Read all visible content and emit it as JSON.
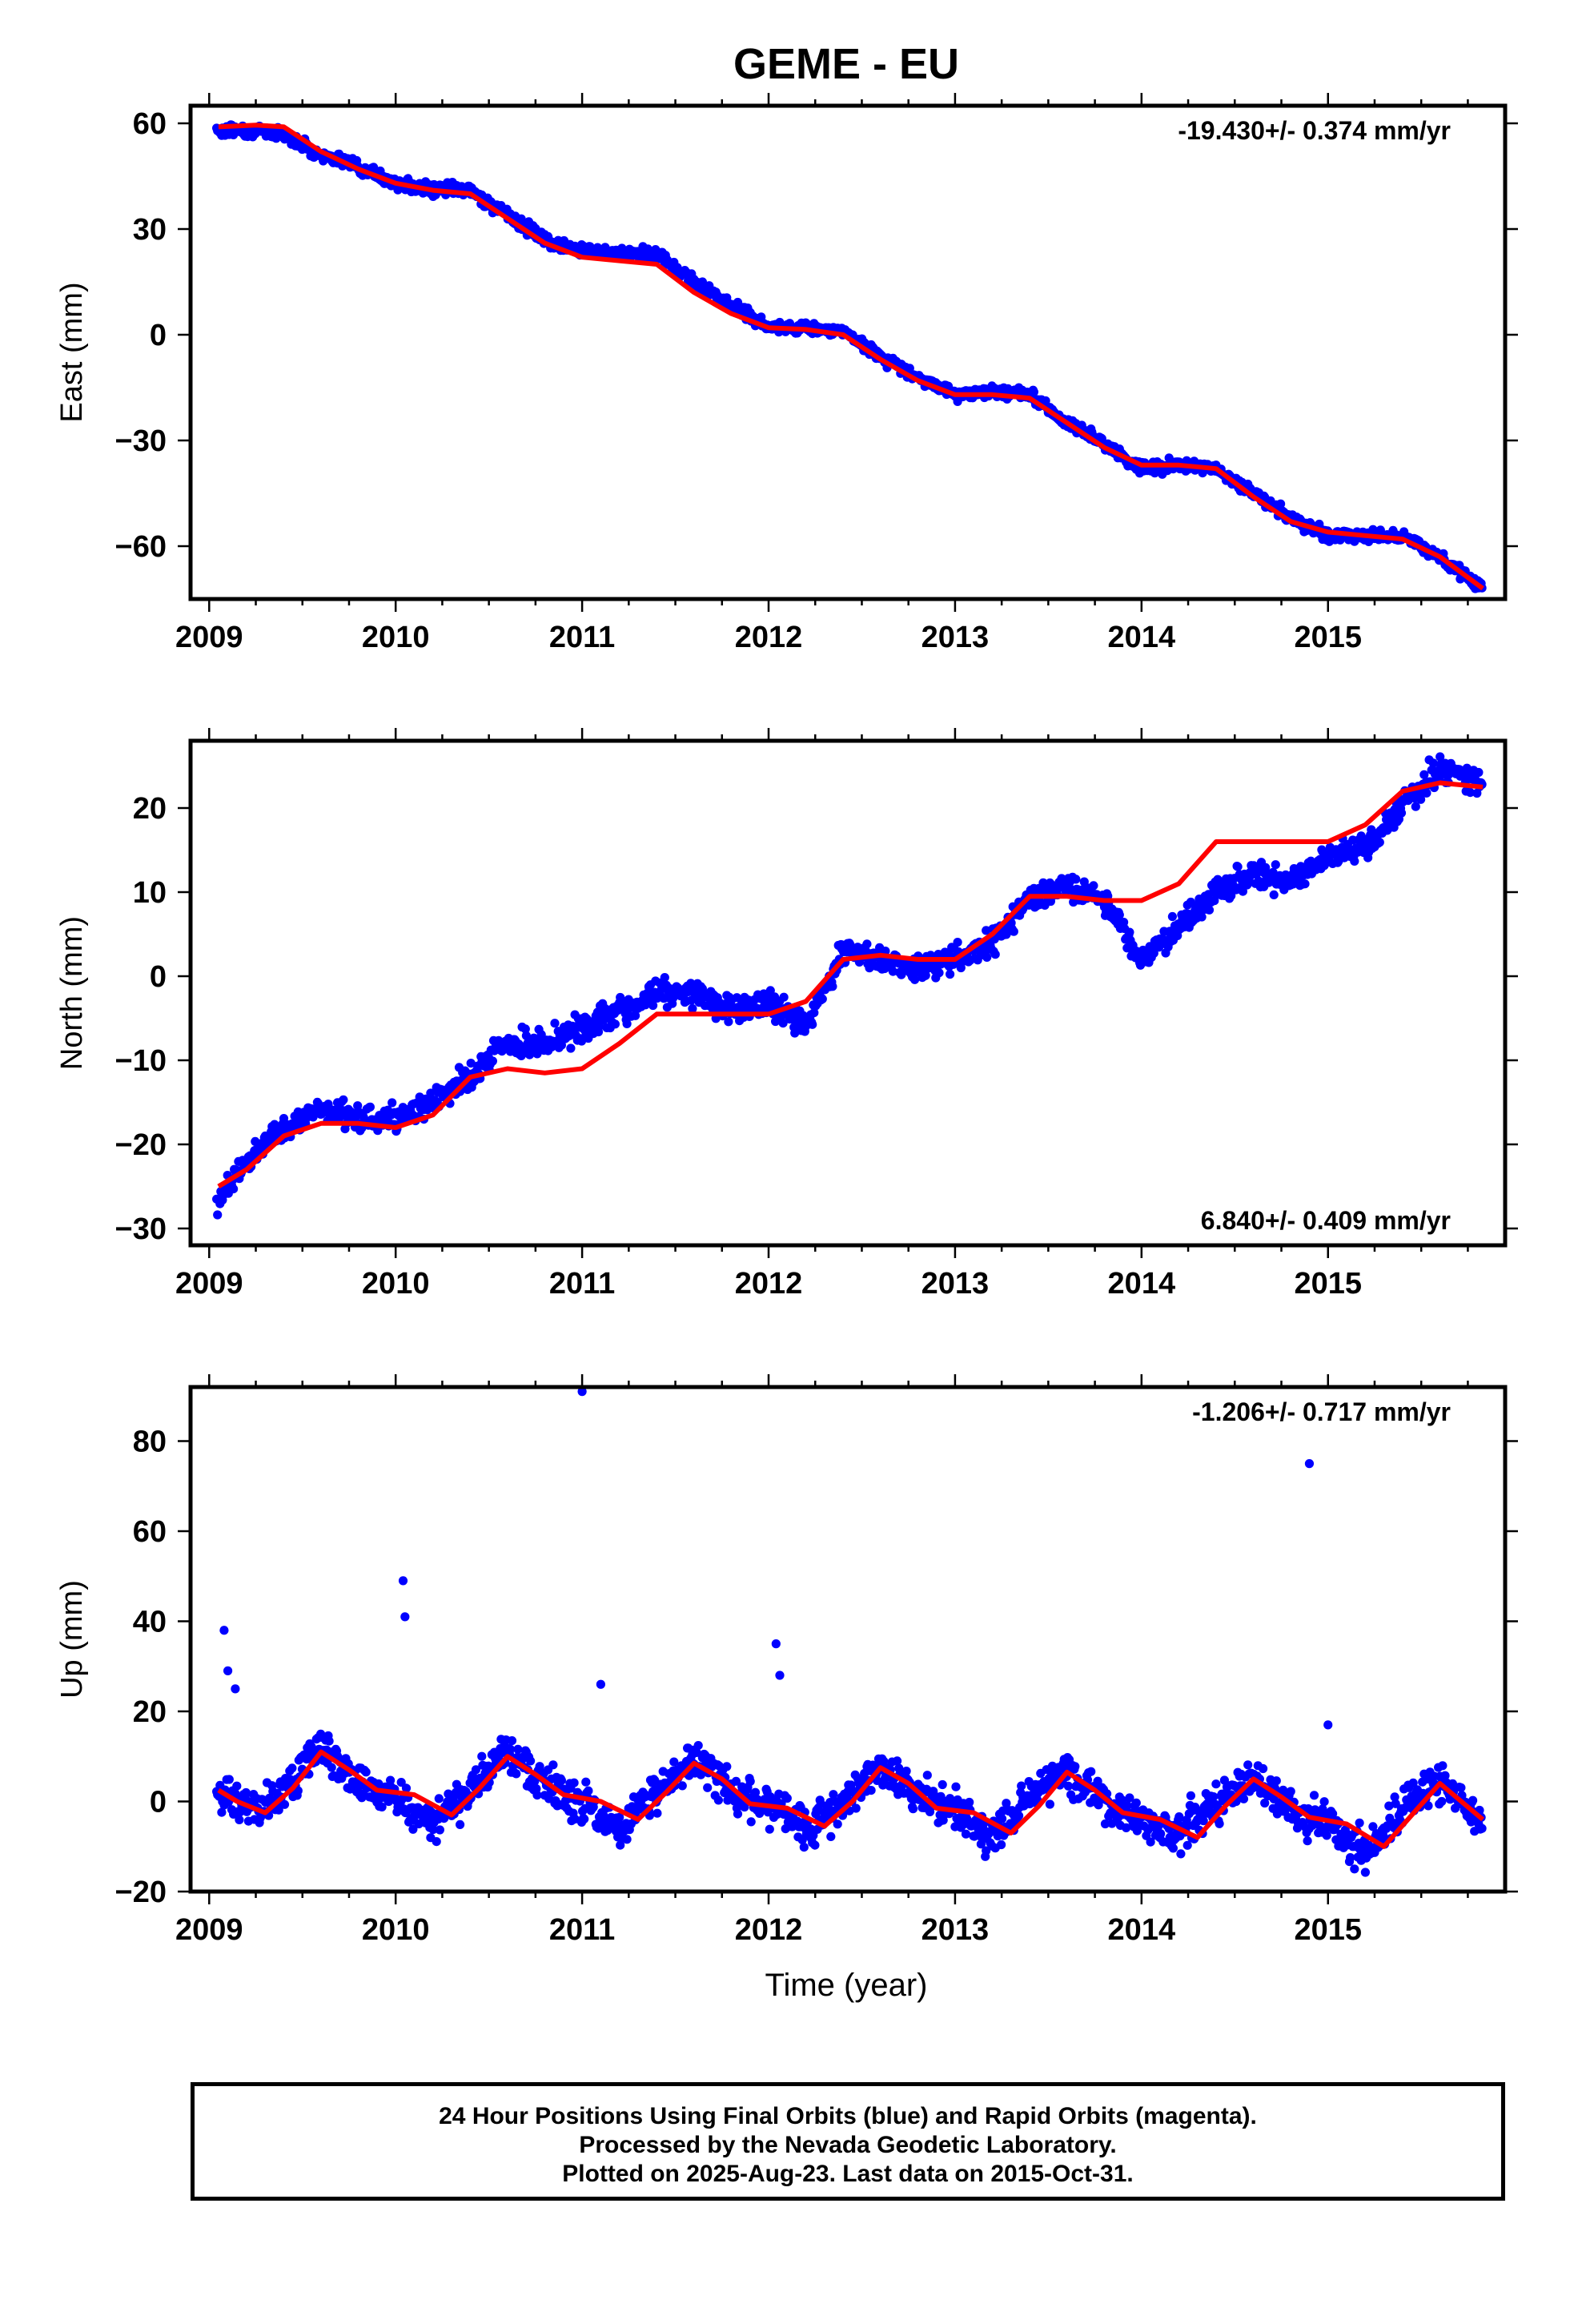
{
  "title": "GEME - EU",
  "colors": {
    "final": "#0000ff",
    "model": "#ff0000",
    "frame": "#000000"
  },
  "x_ticks": [
    "2009",
    "2010",
    "2011",
    "2012",
    "2013",
    "2014",
    "2015"
  ],
  "xlabel": "Time (year)",
  "footer": {
    "line1": "24 Hour Positions Using Final Orbits (blue) and Rapid Orbits (magenta).",
    "line2": "Processed by the Nevada Geodetic Laboratory.",
    "line3": "Plotted on 2025-Aug-23. Last data on 2015-Oct-31."
  },
  "chart_data": [
    {
      "type": "scatter",
      "ylabel": "East (mm)",
      "rate_text": "-19.430+/- 0.374 mm/yr",
      "rate_position": "top-right",
      "xlim": [
        2008.9,
        2015.95
      ],
      "ylim": [
        -75,
        65
      ],
      "yticks": [
        60,
        30,
        0,
        -30,
        -60
      ],
      "ytick_labels": [
        "60",
        "30",
        "0",
        "−30",
        "−60"
      ],
      "grid": false,
      "series": [
        {
          "name": "Final Orbits",
          "x": [
            2009.0,
            2009.25,
            2009.4,
            2009.6,
            2009.8,
            2010.0,
            2010.2,
            2010.4,
            2010.6,
            2010.8,
            2011.0,
            2011.2,
            2011.4,
            2011.6,
            2011.8,
            2012.0,
            2012.2,
            2012.4,
            2012.6,
            2012.8,
            2013.0,
            2013.2,
            2013.4,
            2013.6,
            2013.8,
            2014.0,
            2014.2,
            2014.4,
            2014.6,
            2014.8,
            2015.0,
            2015.2,
            2015.4,
            2015.6,
            2015.83
          ],
          "y": [
            58,
            58,
            57,
            51,
            48,
            43,
            41,
            41,
            34,
            27,
            24,
            23,
            23,
            15,
            8,
            2,
            2,
            1,
            -6,
            -12,
            -17,
            -16,
            -17,
            -25,
            -31,
            -38,
            -37,
            -38,
            -45,
            -52,
            -57,
            -57,
            -57,
            -63,
            -72
          ]
        },
        {
          "name": "Model",
          "x": [
            2009.05,
            2009.25,
            2009.4,
            2009.6,
            2009.8,
            2010.0,
            2010.2,
            2010.4,
            2010.6,
            2010.8,
            2011.0,
            2011.2,
            2011.4,
            2011.6,
            2011.8,
            2012.0,
            2012.2,
            2012.4,
            2012.6,
            2012.8,
            2013.0,
            2013.2,
            2013.4,
            2013.6,
            2013.8,
            2014.0,
            2014.2,
            2014.4,
            2014.6,
            2014.8,
            2015.0,
            2015.2,
            2015.4,
            2015.6,
            2015.83
          ],
          "y": [
            59,
            59.5,
            59,
            52,
            47,
            43,
            41,
            40,
            33,
            26,
            22,
            21,
            20,
            12,
            6,
            2,
            1.5,
            0,
            -7,
            -13,
            -17,
            -17,
            -18,
            -25,
            -32,
            -37,
            -37,
            -38,
            -46,
            -53,
            -56,
            -57,
            -58,
            -63,
            -72
          ]
        }
      ]
    },
    {
      "type": "scatter",
      "ylabel": "North (mm)",
      "rate_text": "6.840+/- 0.409 mm/yr",
      "rate_position": "bottom-right",
      "xlim": [
        2008.9,
        2015.95
      ],
      "ylim": [
        -32,
        28
      ],
      "yticks": [
        20,
        10,
        0,
        -10,
        -20,
        -30
      ],
      "ytick_labels": [
        "20",
        "10",
        "0",
        "−10",
        "−20",
        "−30"
      ],
      "grid": false,
      "series": [
        {
          "name": "Final Orbits",
          "x": [
            2009.0,
            2009.2,
            2009.4,
            2009.6,
            2009.8,
            2010.0,
            2010.2,
            2010.4,
            2010.6,
            2010.8,
            2011.0,
            2011.2,
            2011.4,
            2011.6,
            2011.8,
            2012.0,
            2012.2,
            2012.4,
            2012.6,
            2012.8,
            2013.0,
            2013.2,
            2013.4,
            2013.6,
            2013.8,
            2014.0,
            2014.2,
            2014.4,
            2014.6,
            2014.8,
            2015.0,
            2015.2,
            2015.4,
            2015.6,
            2015.83
          ],
          "y": [
            -28,
            -22,
            -18,
            -16,
            -17,
            -17,
            -15,
            -12,
            -8,
            -8,
            -6,
            -4,
            -2,
            -2,
            -4,
            -3,
            -6,
            3,
            2,
            1,
            2,
            4,
            9,
            11,
            9,
            2,
            6,
            10,
            12,
            11,
            14,
            15,
            20,
            25,
            23
          ]
        },
        {
          "name": "Model",
          "x": [
            2009.05,
            2009.2,
            2009.4,
            2009.6,
            2009.8,
            2010.0,
            2010.2,
            2010.4,
            2010.6,
            2010.8,
            2011.0,
            2011.2,
            2011.4,
            2011.6,
            2011.8,
            2012.0,
            2012.2,
            2012.4,
            2012.6,
            2012.8,
            2013.0,
            2013.2,
            2013.4,
            2013.6,
            2013.8,
            2014.0,
            2014.2,
            2014.4,
            2014.6,
            2014.8,
            2015.0,
            2015.2,
            2015.4,
            2015.6,
            2015.83
          ],
          "y": [
            -25,
            -23,
            -19,
            -17.5,
            -17.5,
            -18,
            -16.5,
            -12,
            -11,
            -11.5,
            -11,
            -8,
            -4.5,
            -4.5,
            -4.5,
            -4.5,
            -3,
            2,
            2.5,
            2,
            2,
            5,
            9.5,
            9.5,
            9,
            9,
            11,
            16,
            16,
            16,
            16,
            18,
            22,
            23,
            22.5
          ]
        }
      ]
    },
    {
      "type": "scatter",
      "ylabel": "Up (mm)",
      "rate_text": "-1.206+/- 0.717 mm/yr",
      "rate_position": "top-right",
      "xlim": [
        2008.9,
        2015.95
      ],
      "ylim": [
        -20,
        92
      ],
      "yticks": [
        80,
        60,
        40,
        20,
        0,
        -20
      ],
      "ytick_labels": [
        "80",
        "60",
        "40",
        "20",
        "0",
        "−20"
      ],
      "grid": false,
      "series": [
        {
          "name": "Final Orbits",
          "x": [
            2009.0,
            2009.1,
            2009.3,
            2009.6,
            2009.8,
            2010.0,
            2010.2,
            2010.4,
            2010.6,
            2010.8,
            2011.0,
            2011.2,
            2011.4,
            2011.6,
            2011.8,
            2012.0,
            2012.2,
            2012.4,
            2012.6,
            2012.8,
            2013.0,
            2013.2,
            2013.4,
            2013.6,
            2013.8,
            2014.0,
            2014.2,
            2014.4,
            2014.6,
            2014.8,
            2015.0,
            2015.2,
            2015.4,
            2015.6,
            2015.83
          ],
          "y": [
            3,
            1,
            -2,
            12,
            4,
            1,
            -5,
            2,
            11,
            3,
            0,
            -6,
            2,
            10,
            3,
            -1,
            -7,
            0,
            8,
            1,
            -2,
            -8,
            1,
            7,
            0,
            -4,
            -7,
            -1,
            6,
            -2,
            -5,
            -11,
            -2,
            5,
            -5
          ]
        },
        {
          "name": "Outliers",
          "x": [
            2009.08,
            2009.1,
            2009.14,
            2010.04,
            2010.05,
            2011.0,
            2011.1,
            2012.04,
            2012.06,
            2014.9,
            2015.0
          ],
          "y": [
            38,
            29,
            25,
            49,
            41,
            91,
            26,
            35,
            28,
            75,
            17
          ]
        },
        {
          "name": "Model",
          "x": [
            2009.05,
            2009.15,
            2009.3,
            2009.45,
            2009.6,
            2009.75,
            2009.9,
            2010.1,
            2010.3,
            2010.45,
            2010.6,
            2010.75,
            2010.9,
            2011.1,
            2011.3,
            2011.45,
            2011.6,
            2011.75,
            2011.9,
            2012.1,
            2012.3,
            2012.45,
            2012.6,
            2012.75,
            2012.9,
            2013.1,
            2013.3,
            2013.45,
            2013.6,
            2013.75,
            2013.9,
            2014.1,
            2014.3,
            2014.45,
            2014.6,
            2014.75,
            2014.9,
            2015.1,
            2015.3,
            2015.45,
            2015.6,
            2015.83
          ],
          "y": [
            2.5,
            0,
            -2.5,
            3,
            11,
            7,
            2.5,
            1.5,
            -3,
            3,
            10,
            6,
            1.5,
            0,
            -4,
            2,
            8.5,
            5,
            -0.5,
            -1.5,
            -5.5,
            0,
            7.5,
            4,
            -1.5,
            -2.5,
            -7,
            -1,
            6.5,
            2.5,
            -2.5,
            -4,
            -8,
            -1,
            5,
            1,
            -3.5,
            -5,
            -10,
            -3,
            4,
            -4
          ]
        }
      ]
    }
  ]
}
